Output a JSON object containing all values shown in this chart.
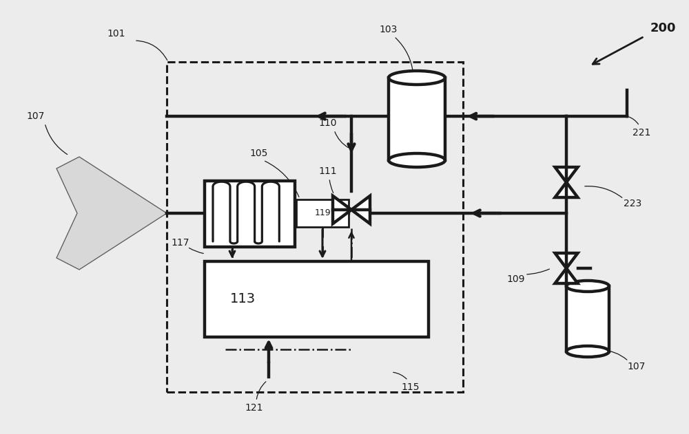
{
  "bg_color": "#ececec",
  "line_color": "#1a1a1a",
  "thick_lw": 3.2,
  "thin_lw": 1.5,
  "dashed_lw": 2.2,
  "dashdot_lw": 1.8,
  "fs_label": 10,
  "fs_113": 14,
  "fs_119": 9,
  "fs_200": 13
}
